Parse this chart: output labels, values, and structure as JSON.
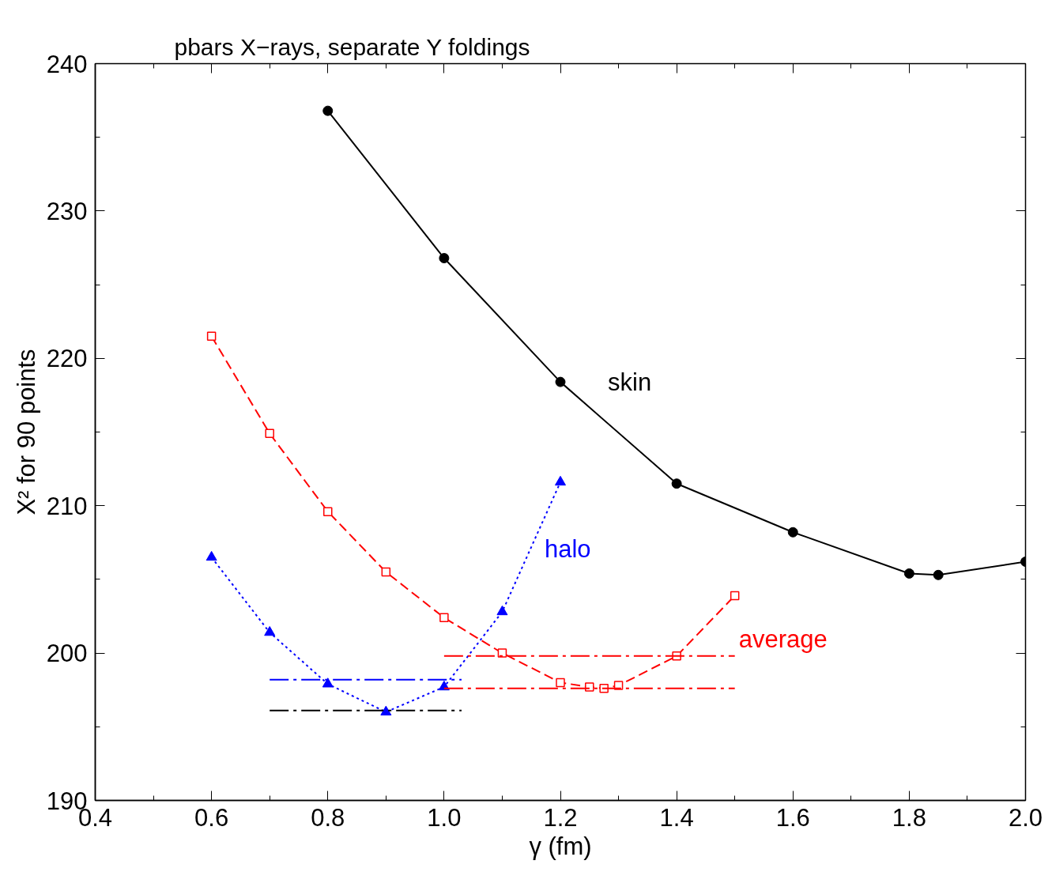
{
  "chart_data": {
    "type": "line",
    "title": "pbars X−rays, separate Y foldings",
    "xlabel": "γ (fm)",
    "ylabel": "X² for 90 points",
    "xlim": [
      0.4,
      2.0
    ],
    "ylim": [
      190,
      240
    ],
    "xticks": [
      {
        "value": 0.4,
        "label": "0.4"
      },
      {
        "value": 0.5,
        "label": null
      },
      {
        "value": 0.6,
        "label": "0.6"
      },
      {
        "value": 0.7,
        "label": null
      },
      {
        "value": 0.8,
        "label": "0.8"
      },
      {
        "value": 0.9,
        "label": null
      },
      {
        "value": 1.0,
        "label": "1.0"
      },
      {
        "value": 1.1,
        "label": null
      },
      {
        "value": 1.2,
        "label": "1.2"
      },
      {
        "value": 1.3,
        "label": null
      },
      {
        "value": 1.4,
        "label": "1.4"
      },
      {
        "value": 1.5,
        "label": null
      },
      {
        "value": 1.6,
        "label": "1.6"
      },
      {
        "value": 1.7,
        "label": null
      },
      {
        "value": 1.8,
        "label": "1.8"
      },
      {
        "value": 1.9,
        "label": null
      },
      {
        "value": 2.0,
        "label": "2.0"
      }
    ],
    "yticks": [
      190,
      {
        "value": 195,
        "label": null
      },
      200,
      {
        "value": 205,
        "label": null
      },
      210,
      {
        "value": 215,
        "label": null
      },
      220,
      {
        "value": 225,
        "label": null
      },
      230,
      {
        "value": 235,
        "label": null
      },
      240
    ],
    "grid": false,
    "series": [
      {
        "name": "skin",
        "color": "#000000",
        "marker": "circle",
        "line_style": "solid",
        "x": [
          0.8,
          1.0,
          1.2,
          1.4,
          1.6,
          1.8,
          1.85,
          2.0
        ],
        "values": [
          236.8,
          226.8,
          218.4,
          211.5,
          208.2,
          205.4,
          205.3,
          206.2
        ]
      },
      {
        "name": "halo",
        "color": "#0000ff",
        "marker": "triangle",
        "line_style": "dotted",
        "x": [
          0.6,
          0.7,
          0.8,
          0.9,
          1.0,
          1.1,
          1.2
        ],
        "values": [
          206.5,
          201.4,
          197.9,
          196.0,
          197.7,
          202.8,
          211.6
        ]
      },
      {
        "name": "average",
        "color": "#ff0000",
        "marker": "square",
        "line_style": "dashed",
        "x": [
          0.6,
          0.7,
          0.8,
          0.9,
          1.0,
          1.1,
          1.2,
          1.25,
          1.275,
          1.3,
          1.4,
          1.5
        ],
        "values": [
          221.5,
          214.9,
          209.6,
          205.5,
          202.4,
          200.0,
          198.0,
          197.7,
          197.6,
          197.8,
          199.8,
          203.9
        ]
      },
      {
        "color": "#0000ff",
        "marker": "none",
        "line_style": "dashdot",
        "x": [
          0.7,
          1.03
        ],
        "values": [
          198.2,
          198.2
        ]
      },
      {
        "color": "#000000",
        "marker": "none",
        "line_style": "dashdot",
        "x": [
          0.7,
          1.03
        ],
        "values": [
          196.1,
          196.1
        ]
      },
      {
        "color": "#ff0000",
        "marker": "none",
        "line_style": "dashdot",
        "x": [
          1.0,
          1.5
        ],
        "values": [
          199.8,
          199.8
        ]
      },
      {
        "color": "#ff0000",
        "marker": "none",
        "line_style": "dashdot",
        "x": [
          1.0,
          1.5
        ],
        "values": [
          197.6,
          197.6
        ]
      }
    ]
  }
}
